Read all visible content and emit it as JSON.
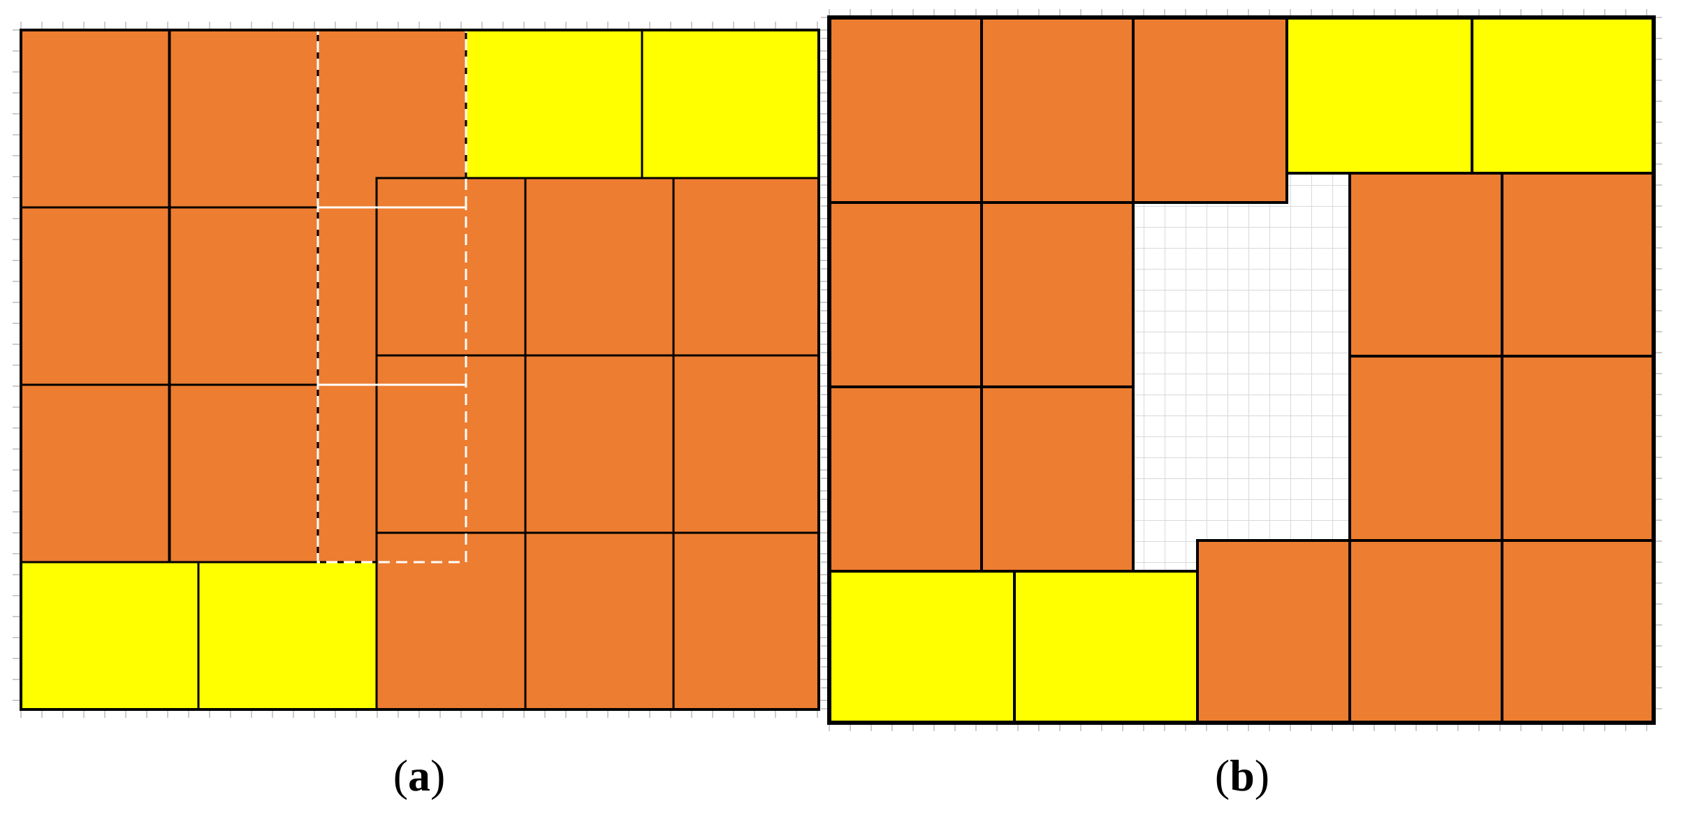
{
  "panels": [
    {
      "id": "a",
      "caption_open": "(",
      "caption_letter": "a",
      "caption_close": ")"
    },
    {
      "id": "b",
      "caption_open": "(",
      "caption_letter": "b",
      "caption_close": ")"
    }
  ],
  "colors": {
    "orange": "#ED7D31",
    "yellow": "#FFFF00",
    "outline": "#000000",
    "dashed": "#FFFFFF",
    "grid": "#D9D9D9"
  }
}
